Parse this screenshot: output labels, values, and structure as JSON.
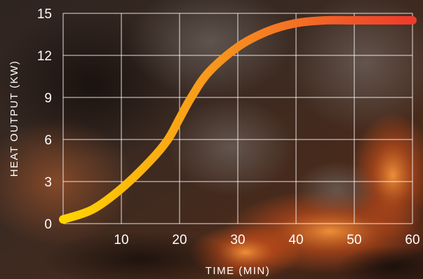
{
  "chart_data": {
    "type": "line",
    "title": "",
    "xlabel": "TIME (MIN)",
    "ylabel": "HEAT OUTPUT (KW)",
    "xlim": [
      0,
      60
    ],
    "ylim": [
      0,
      15
    ],
    "x_ticks": [
      "10",
      "20",
      "30",
      "40",
      "50",
      "60"
    ],
    "y_ticks": [
      "0",
      "3",
      "6",
      "9",
      "12",
      "15"
    ],
    "grid": true,
    "legend": "none",
    "series": [
      {
        "x": [
          0,
          5,
          10,
          15,
          18,
          20,
          22,
          25,
          30,
          35,
          40,
          45,
          50,
          55,
          60
        ],
        "y": [
          0.3,
          1.0,
          2.5,
          4.5,
          6.0,
          7.5,
          9.0,
          10.8,
          12.6,
          13.7,
          14.3,
          14.5,
          14.5,
          14.5,
          14.5
        ],
        "gradient": [
          "#ffd600",
          "#f7931e",
          "#ef3a2d"
        ]
      }
    ],
    "background": "campfire-embers-photo",
    "colors": {
      "grid": "#ffffff",
      "text": "#ffffff"
    }
  }
}
